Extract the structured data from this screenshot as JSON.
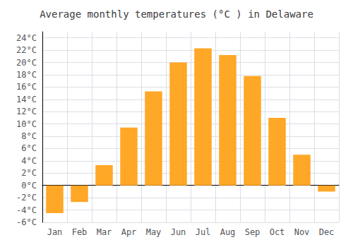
{
  "chart_data": {
    "type": "bar",
    "title": "Average monthly temperatures (°C ) in Delaware",
    "categories": [
      "Jan",
      "Feb",
      "Mar",
      "Apr",
      "May",
      "Jun",
      "Jul",
      "Aug",
      "Sep",
      "Oct",
      "Nov",
      "Dec"
    ],
    "values": [
      -4.5,
      -2.7,
      3.3,
      9.4,
      15.3,
      20.0,
      22.3,
      21.2,
      17.8,
      11.0,
      5.0,
      -1.0
    ],
    "color": "#FFA726",
    "ylim": [
      -6,
      25
    ],
    "yticks": [
      {
        "value": -6,
        "label": "-6°C"
      },
      {
        "value": -4,
        "label": "-4°C"
      },
      {
        "value": -2,
        "label": "-2°C"
      },
      {
        "value": 0,
        "label": "0°C"
      },
      {
        "value": 2,
        "label": "2°C"
      },
      {
        "value": 4,
        "label": "4°C"
      },
      {
        "value": 6,
        "label": "6°C"
      },
      {
        "value": 8,
        "label": "8°C"
      },
      {
        "value": 10,
        "label": "10°C"
      },
      {
        "value": 12,
        "label": "12°C"
      },
      {
        "value": 14,
        "label": "14°C"
      },
      {
        "value": 16,
        "label": "16°C"
      },
      {
        "value": 18,
        "label": "18°C"
      },
      {
        "value": 20,
        "label": "20°C"
      },
      {
        "value": 22,
        "label": "22°C"
      },
      {
        "value": 24,
        "label": "24°C"
      }
    ],
    "grid": true
  }
}
